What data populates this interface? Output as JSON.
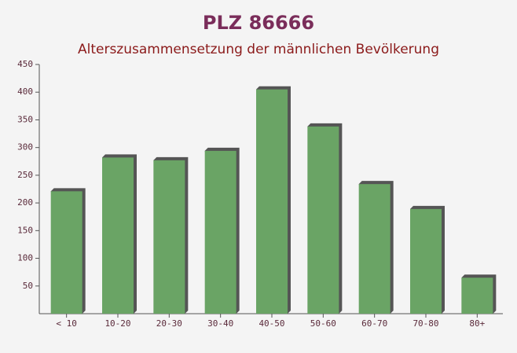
{
  "chart_data": {
    "type": "bar",
    "title": "PLZ 86666",
    "subtitle": "Alterszusammensetzung der männlichen Bevölkerung",
    "categories": [
      "< 10",
      "10-20",
      "20-30",
      "30-40",
      "40-50",
      "50-60",
      "60-70",
      "70-80",
      "80+"
    ],
    "values": [
      221,
      282,
      277,
      294,
      405,
      338,
      234,
      189,
      65
    ],
    "color": "#6aa465",
    "ylim": [
      0,
      450
    ],
    "yticks": [
      50,
      100,
      150,
      200,
      250,
      300,
      350,
      400,
      450
    ],
    "grid": false
  }
}
